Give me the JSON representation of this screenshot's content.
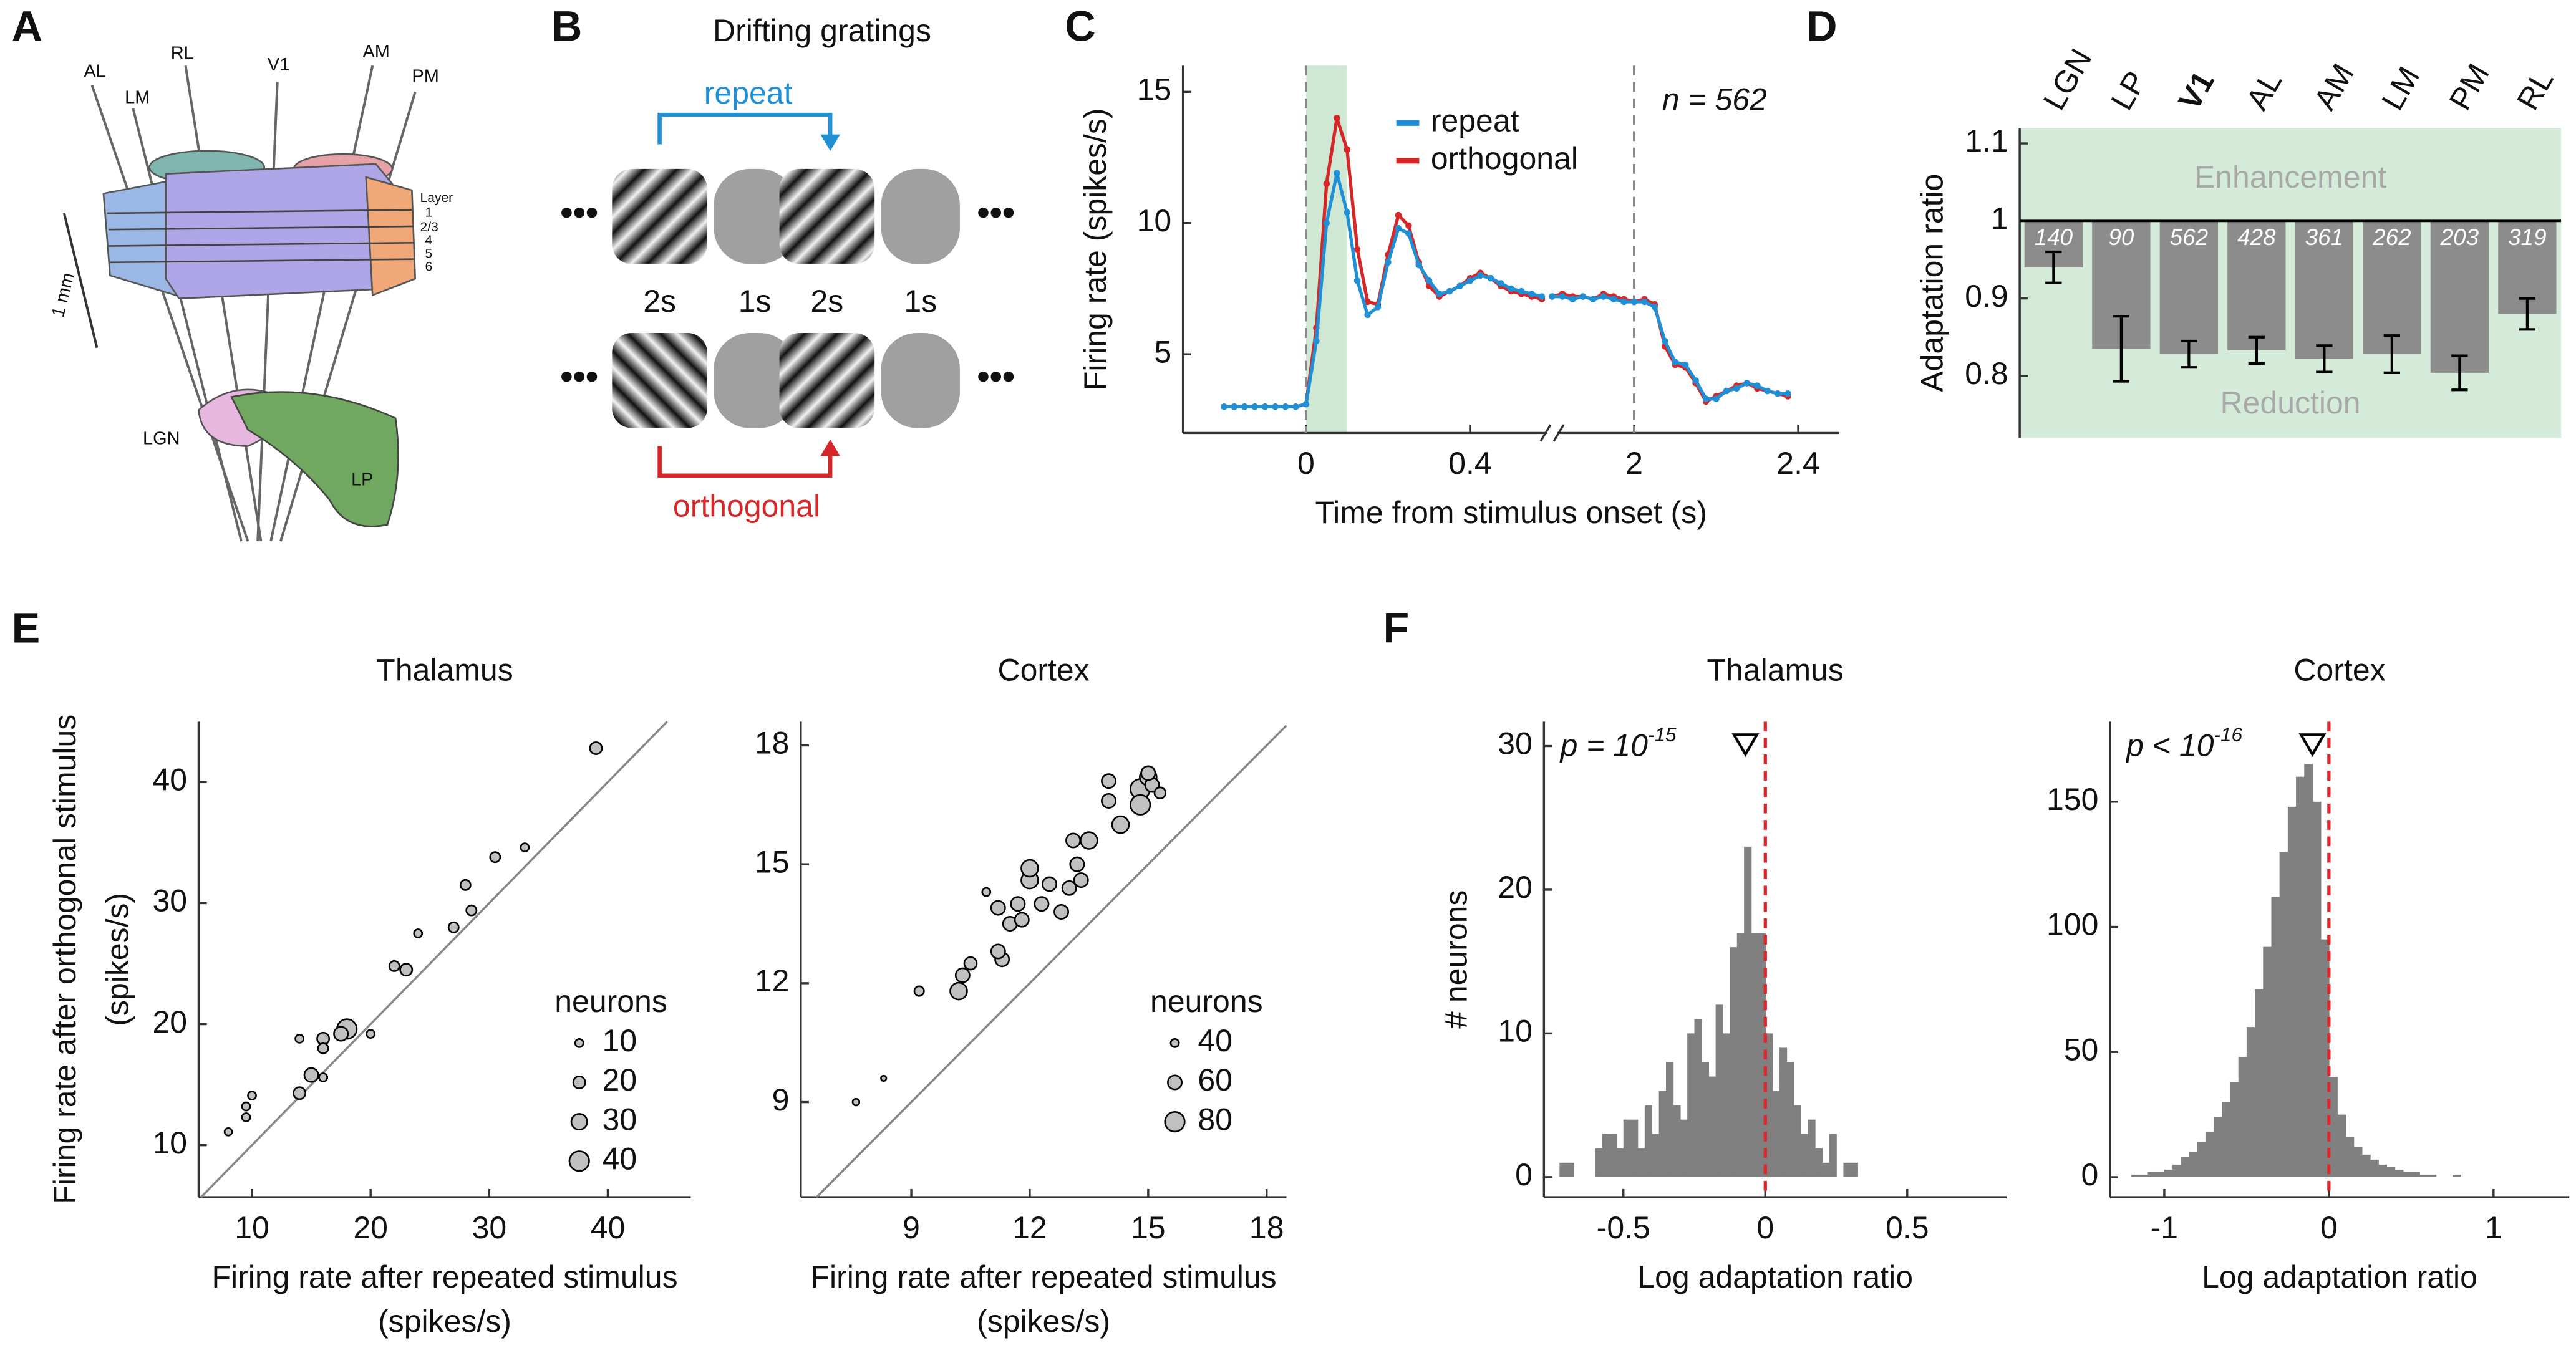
{
  "panel_labels": [
    "A",
    "B",
    "C",
    "D",
    "E",
    "F"
  ],
  "diagram_a": {
    "areas": [
      "AL",
      "LM",
      "RL",
      "V1",
      "AM",
      "PM"
    ],
    "layer_title": "Layer",
    "layers": [
      "1",
      "2/3",
      "4",
      "5",
      "6"
    ],
    "scale": "1 mm",
    "thalamus": [
      "LGN",
      "LP"
    ]
  },
  "diagram_b": {
    "title": "Drifting gratings",
    "repeat": "repeat",
    "orthogonal": "orthogonal",
    "durations": [
      "2s",
      "1s",
      "2s",
      "1s"
    ]
  },
  "chart_data": [
    {
      "type": "line",
      "x_label": "Time from stimulus onset (s)",
      "y_label": "Firing rate (spikes/s)",
      "annotation": "n = 562",
      "x": [
        -0.2,
        -0.175,
        -0.15,
        -0.125,
        -0.1,
        -0.075,
        -0.05,
        -0.025,
        0,
        0.025,
        0.05,
        0.075,
        0.1,
        0.125,
        0.15,
        0.175,
        0.2,
        0.225,
        0.25,
        0.275,
        0.3,
        0.325,
        0.35,
        0.375,
        0.4,
        0.425,
        0.45,
        0.475,
        0.5,
        0.525,
        0.55,
        0.575,
        null,
        1.8,
        1.825,
        1.85,
        1.875,
        1.9,
        1.925,
        1.95,
        1.975,
        2,
        2.025,
        2.05,
        2.075,
        2.1,
        2.125,
        2.15,
        2.175,
        2.2,
        2.225,
        2.25,
        2.275,
        2.3,
        2.325,
        2.35,
        2.375
      ],
      "series": [
        {
          "name": "orthogonal",
          "color": "#d62728",
          "values": [
            3,
            3,
            3,
            3,
            3,
            3,
            3,
            3,
            3.1,
            6,
            11.5,
            14,
            12.8,
            9,
            7,
            6.9,
            8.8,
            10.3,
            9.9,
            8.5,
            7.6,
            7.2,
            7.4,
            7.6,
            7.9,
            8.1,
            7.9,
            7.6,
            7.4,
            7.3,
            7.2,
            7.1,
            null,
            7.2,
            7.3,
            7.2,
            7.2,
            7.1,
            7.3,
            7.2,
            7.1,
            7,
            7.1,
            6.9,
            5.3,
            4.6,
            4.5,
            3.9,
            3.2,
            3.4,
            3.6,
            3.8,
            3.9,
            3.7,
            3.6,
            3.5,
            3.4
          ]
        },
        {
          "name": "repeat",
          "color": "#1f8fd6",
          "values": [
            3,
            3,
            3,
            3,
            3,
            3,
            3,
            3,
            3.1,
            5.5,
            10,
            11.9,
            10.4,
            7.8,
            6.5,
            6.8,
            8.5,
            9.8,
            9.6,
            8.4,
            7.8,
            7.3,
            7.4,
            7.6,
            7.8,
            8,
            7.9,
            7.7,
            7.5,
            7.4,
            7.3,
            7.2,
            null,
            7.2,
            7.2,
            7.1,
            7.2,
            7.1,
            7.2,
            7.1,
            7,
            7,
            7,
            6.8,
            5.5,
            4.7,
            4.6,
            4,
            3.3,
            3.3,
            3.6,
            3.7,
            3.9,
            3.8,
            3.6,
            3.5,
            3.5
          ]
        }
      ],
      "xlim": [
        -0.3,
        2.5
      ],
      "x_break": [
        0.6,
        1.8
      ],
      "xticks": [
        0,
        0.4,
        2,
        2.4
      ],
      "ylim": [
        2,
        16
      ],
      "yticks": [
        5,
        10,
        15
      ],
      "vlines": [
        0,
        2
      ],
      "highlight": [
        0,
        0.1
      ],
      "highlight_color": "#cfe8d4"
    },
    {
      "type": "bar",
      "y_label": "Adaptation ratio",
      "categories": [
        "LGN",
        "LP",
        "V1",
        "AL",
        "AM",
        "LM",
        "PM",
        "RL"
      ],
      "values": [
        0.94,
        0.835,
        0.828,
        0.833,
        0.822,
        0.828,
        0.804,
        0.88
      ],
      "errors": [
        0.02,
        0.042,
        0.017,
        0.017,
        0.017,
        0.024,
        0.022,
        0.02
      ],
      "counts": [
        140,
        90,
        562,
        428,
        361,
        262,
        203,
        319
      ],
      "bold_index": 2,
      "baseline": 1,
      "color": "#8c8c8c",
      "shade_color": "#d5ebd9",
      "annotations": [
        "Enhancement",
        "Reduction"
      ],
      "ylim": [
        0.72,
        1.12
      ],
      "yticks": [
        0.8,
        0.9,
        1,
        1.1
      ]
    },
    {
      "type": "scatter",
      "title": "Thalamus",
      "x_label": [
        "Firing rate after repeated stimulus",
        "(spikes/s)"
      ],
      "y_label": [
        "Firing rate after orthogonal stimulus",
        "(spikes/s)"
      ],
      "x": [
        39,
        33,
        30.5,
        28,
        27,
        28.5,
        22,
        23,
        24,
        18,
        17.5,
        16,
        16,
        14,
        20,
        15,
        14,
        16,
        10,
        9.5,
        9.5,
        8
      ],
      "values": [
        42.8,
        34.6,
        33.8,
        31.5,
        28,
        29.4,
        24.8,
        24.5,
        27.5,
        19.6,
        19.2,
        18.8,
        18,
        18.8,
        19.2,
        15.8,
        14.3,
        15.6,
        14.1,
        13.2,
        12.3,
        11.1
      ],
      "sizes": [
        20,
        10,
        15,
        15,
        15,
        15,
        15,
        20,
        10,
        40,
        25,
        20,
        15,
        10,
        10,
        25,
        20,
        10,
        10,
        10,
        10,
        8
      ],
      "color": "#c0c0c0",
      "diagonal": true,
      "size_legend": {
        "title": "neurons",
        "values": [
          10,
          20,
          30,
          40
        ]
      },
      "xlim": [
        5.5,
        47
      ],
      "xticks": [
        10,
        20,
        30,
        40
      ],
      "ylim": [
        5.7,
        45
      ],
      "yticks": [
        10,
        20,
        30,
        40
      ]
    },
    {
      "type": "scatter",
      "title": "Cortex",
      "x_label": [
        "Firing rate after repeated stimulus",
        "(spikes/s)"
      ],
      "x": [
        7.6,
        8.3,
        9.2,
        10.2,
        10.3,
        10.5,
        10.9,
        11.3,
        11.2,
        11.5,
        11.2,
        11.7,
        11.8,
        12,
        12,
        12.3,
        12.5,
        12.8,
        13,
        13.3,
        13.2,
        13.5,
        13.1,
        14,
        14,
        14.3,
        14.8,
        14.8,
        15,
        15.1,
        15.3,
        15
      ],
      "values": [
        9,
        9.6,
        11.8,
        11.8,
        12.2,
        12.5,
        14.3,
        12.6,
        12.8,
        13.5,
        13.9,
        14,
        13.6,
        14.6,
        14.9,
        14,
        14.5,
        13.8,
        14.4,
        14.6,
        15,
        15.6,
        15.6,
        16.6,
        17.1,
        16,
        16.9,
        16.5,
        17.2,
        17,
        16.8,
        17.3
      ],
      "sizes": [
        35,
        30,
        45,
        70,
        60,
        55,
        40,
        60,
        60,
        60,
        60,
        60,
        60,
        70,
        70,
        60,
        60,
        60,
        60,
        60,
        60,
        70,
        60,
        60,
        60,
        70,
        80,
        80,
        70,
        60,
        50,
        60
      ],
      "color": "#c0c0c0",
      "diagonal": true,
      "size_legend": {
        "title": "neurons",
        "values": [
          40,
          60,
          80
        ]
      },
      "xlim": [
        6.2,
        18.5
      ],
      "xticks": [
        9,
        12,
        15,
        18
      ],
      "ylim": [
        6.6,
        18.6
      ],
      "yticks": [
        9,
        12,
        15,
        18
      ]
    },
    {
      "type": "histogram",
      "title": "Thalamus",
      "x_label": "Log adaptation ratio",
      "y_label": "# neurons",
      "annotation": {
        "base": "p = 10",
        "exponent": "-15"
      },
      "bins": [
        -0.725,
        -0.7,
        -0.675,
        -0.65,
        -0.625,
        -0.6,
        -0.575,
        -0.55,
        -0.525,
        -0.5,
        -0.475,
        -0.45,
        -0.425,
        -0.4,
        -0.375,
        -0.35,
        -0.325,
        -0.3,
        -0.275,
        -0.25,
        -0.225,
        -0.2,
        -0.175,
        -0.15,
        -0.125,
        -0.1,
        -0.075,
        -0.05,
        -0.025,
        0,
        0.025,
        0.05,
        0.075,
        0.1,
        0.125,
        0.15,
        0.175,
        0.2,
        0.225,
        0.25,
        0.275,
        0.3,
        0.325
      ],
      "values": [
        1,
        1,
        0,
        0,
        0,
        2,
        3,
        3,
        2,
        4,
        4,
        2,
        5,
        3,
        6,
        8,
        5,
        4,
        10,
        11,
        8,
        7,
        12,
        10,
        16,
        17,
        23,
        17,
        17,
        10,
        6,
        9,
        8,
        5,
        3,
        4,
        2,
        1,
        3,
        0,
        1,
        1
      ],
      "color": "#808080",
      "ref_line": 0,
      "ref_color": "#e0262a",
      "marker": -0.07,
      "xlim": [
        -0.78,
        0.85
      ],
      "xticks": [
        -0.5,
        0,
        0.5
      ],
      "ylim": [
        -1.4,
        31.7
      ],
      "yticks": [
        0,
        10,
        20,
        30
      ]
    },
    {
      "type": "histogram",
      "title": "Cortex",
      "x_label": "Log adaptation ratio",
      "annotation": {
        "base": "p < 10",
        "exponent": "-16"
      },
      "bins": [
        -1.2,
        -1.15,
        -1.1,
        -1.05,
        -1,
        -0.95,
        -0.9,
        -0.85,
        -0.8,
        -0.75,
        -0.7,
        -0.65,
        -0.6,
        -0.55,
        -0.5,
        -0.45,
        -0.4,
        -0.35,
        -0.3,
        -0.25,
        -0.2,
        -0.15,
        -0.1,
        -0.05,
        0,
        0.05,
        0.1,
        0.15,
        0.2,
        0.25,
        0.3,
        0.35,
        0.4,
        0.45,
        0.5,
        0.55,
        0.6,
        0.65,
        0.7,
        0.75,
        0.8
      ],
      "values": [
        1,
        1,
        2,
        2,
        3,
        5,
        8,
        10,
        14,
        18,
        24,
        30,
        38,
        48,
        60,
        75,
        92,
        112,
        130,
        148,
        160,
        165,
        150,
        95,
        40,
        25,
        16,
        12,
        9,
        7,
        5,
        4,
        3,
        2,
        2,
        1,
        1,
        0,
        0,
        1
      ],
      "color": "#808080",
      "ref_line": 0,
      "ref_color": "#e0262a",
      "marker": -0.1,
      "xlim": [
        -1.33,
        1.46
      ],
      "xticks": [
        -1,
        0,
        1
      ],
      "ylim": [
        -8,
        182
      ],
      "yticks": [
        0,
        50,
        100,
        150
      ]
    }
  ]
}
